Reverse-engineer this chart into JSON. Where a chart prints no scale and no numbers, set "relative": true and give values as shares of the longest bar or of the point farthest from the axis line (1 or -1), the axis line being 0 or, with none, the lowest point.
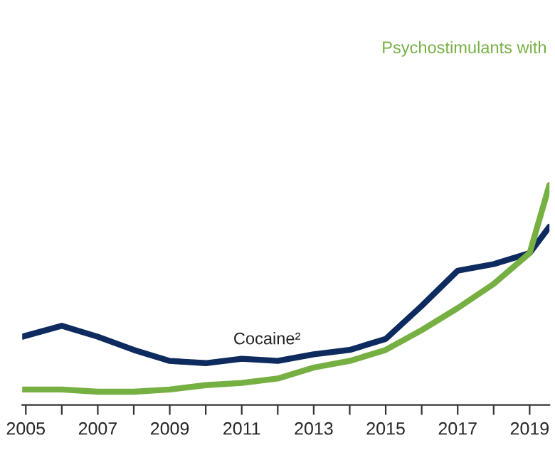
{
  "chart_data": {
    "type": "line",
    "relative": true,
    "tick_labels": "x",
    "grid": false,
    "legend": false,
    "marker": "none",
    "line_style": "solid",
    "xlim": [
      2004.9,
      2019.55
    ],
    "xticks": [
      2005,
      {
        "value": 2006,
        "label": null
      },
      2007,
      {
        "value": 2008,
        "label": null
      },
      2009,
      {
        "value": 2010,
        "label": null
      },
      2011,
      {
        "value": 2012,
        "label": null
      },
      2013,
      {
        "value": 2014,
        "label": null
      },
      2015,
      {
        "value": 2016,
        "label": null
      },
      2017,
      {
        "value": 2018,
        "label": null
      },
      2019
    ],
    "series": [
      {
        "name": "Cocaine²",
        "color": "#0d2b5e",
        "x": [
          2004.9,
          2006,
          2007,
          2008,
          2009,
          2010,
          2011,
          2012,
          2013,
          2014,
          2015,
          2016,
          2017,
          2018,
          2019,
          2019.55
        ],
        "values": [
          0.31,
          0.36,
          0.31,
          0.25,
          0.2,
          0.19,
          0.21,
          0.2,
          0.23,
          0.25,
          0.3,
          0.45,
          0.61,
          0.64,
          0.69,
          0.81
        ]
      },
      {
        "name": "Psychostimulants with",
        "color": "#76b043",
        "x": [
          2004.9,
          2006,
          2007,
          2008,
          2009,
          2010,
          2011,
          2012,
          2013,
          2014,
          2015,
          2016,
          2017,
          2018,
          2019,
          2019.55
        ],
        "values": [
          0.07,
          0.07,
          0.06,
          0.06,
          0.07,
          0.09,
          0.1,
          0.12,
          0.17,
          0.2,
          0.25,
          0.34,
          0.44,
          0.55,
          0.69,
          1
        ]
      }
    ]
  }
}
